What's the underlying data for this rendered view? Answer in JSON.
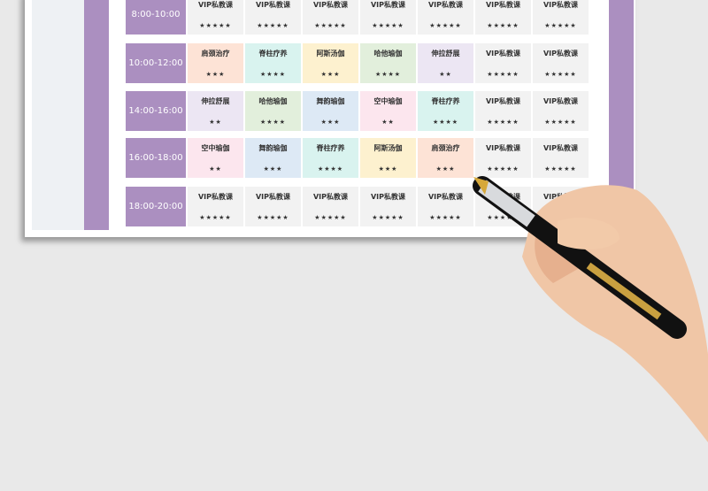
{
  "colors": {
    "purple": "#ab8fc0",
    "orange": "#fde3d6",
    "teal": "#d9f3ef",
    "yellow": "#fdf1cf",
    "green": "#e2efdc",
    "lavender": "#ece6f3",
    "blue": "#dde9f5",
    "pink": "#fce6ee",
    "gray": "#f2f2f2"
  },
  "rows": [
    {
      "time": "8:00-10:00",
      "cells": [
        {
          "name": "VIP私教课",
          "stars": "★★★★★",
          "color": "gray"
        },
        {
          "name": "VIP私教课",
          "stars": "★★★★★",
          "color": "gray"
        },
        {
          "name": "VIP私教课",
          "stars": "★★★★★",
          "color": "gray"
        },
        {
          "name": "VIP私教课",
          "stars": "★★★★★",
          "color": "gray"
        },
        {
          "name": "VIP私教课",
          "stars": "★★★★★",
          "color": "gray"
        },
        {
          "name": "VIP私教课",
          "stars": "★★★★★",
          "color": "gray"
        },
        {
          "name": "VIP私教课",
          "stars": "★★★★★",
          "color": "gray"
        }
      ]
    },
    {
      "time": "10:00-12:00",
      "cells": [
        {
          "name": "肩颈治疗",
          "stars": "★★★",
          "color": "orange"
        },
        {
          "name": "脊柱疗养",
          "stars": "★★★★",
          "color": "teal"
        },
        {
          "name": "阿斯汤伽",
          "stars": "★★★",
          "color": "yellow"
        },
        {
          "name": "哈他瑜伽",
          "stars": "★★★★",
          "color": "green"
        },
        {
          "name": "伸拉舒展",
          "stars": "★★",
          "color": "lavender"
        },
        {
          "name": "VIP私教课",
          "stars": "★★★★★",
          "color": "gray"
        },
        {
          "name": "VIP私教课",
          "stars": "★★★★★",
          "color": "gray"
        }
      ]
    },
    {
      "time": "14:00-16:00",
      "cells": [
        {
          "name": "伸拉舒展",
          "stars": "★★",
          "color": "lavender"
        },
        {
          "name": "哈他瑜伽",
          "stars": "★★★★",
          "color": "green"
        },
        {
          "name": "舞韵瑜伽",
          "stars": "★★★",
          "color": "blue"
        },
        {
          "name": "空中瑜伽",
          "stars": "★★",
          "color": "pink"
        },
        {
          "name": "脊柱疗养",
          "stars": "★★★★",
          "color": "teal"
        },
        {
          "name": "VIP私教课",
          "stars": "★★★★★",
          "color": "gray"
        },
        {
          "name": "VIP私教课",
          "stars": "★★★★★",
          "color": "gray"
        }
      ]
    },
    {
      "time": "16:00-18:00",
      "cells": [
        {
          "name": "空中瑜伽",
          "stars": "★★",
          "color": "pink"
        },
        {
          "name": "舞韵瑜伽",
          "stars": "★★★",
          "color": "blue"
        },
        {
          "name": "脊柱疗养",
          "stars": "★★★★",
          "color": "teal"
        },
        {
          "name": "阿斯汤伽",
          "stars": "★★★",
          "color": "yellow"
        },
        {
          "name": "肩颈治疗",
          "stars": "★★★",
          "color": "orange"
        },
        {
          "name": "VIP私教课",
          "stars": "★★★★★",
          "color": "gray"
        },
        {
          "name": "VIP私教课",
          "stars": "★★★★★",
          "color": "gray"
        }
      ]
    },
    {
      "time": "18:00-20:00",
      "cells": [
        {
          "name": "VIP私教课",
          "stars": "★★★★★",
          "color": "gray"
        },
        {
          "name": "VIP私教课",
          "stars": "★★★★★",
          "color": "gray"
        },
        {
          "name": "VIP私教课",
          "stars": "★★★★★",
          "color": "gray"
        },
        {
          "name": "VIP私教课",
          "stars": "★★★★★",
          "color": "gray"
        },
        {
          "name": "VIP私教课",
          "stars": "★★★★★",
          "color": "gray"
        },
        {
          "name": "VIP私教课",
          "stars": "★★★★★",
          "color": "gray"
        },
        {
          "name": "VIP私教课",
          "stars": "★★★★★",
          "color": "gray"
        }
      ]
    }
  ]
}
